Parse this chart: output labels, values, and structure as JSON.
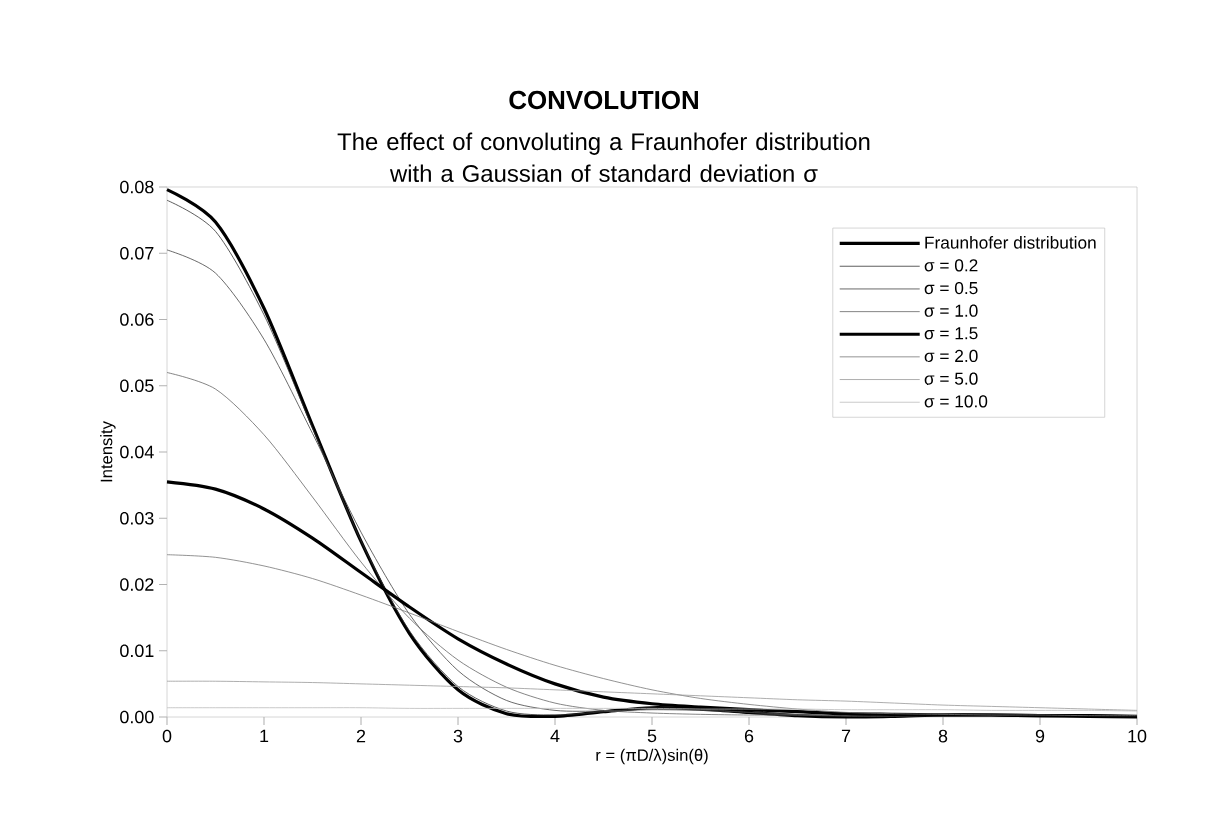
{
  "chart_data": {
    "type": "line",
    "title": "CONVOLUTION",
    "subtitle": "The effect of convoluting a Fraunhofer distribution with a Gaussian of standard deviation σ",
    "xlabel": "r = (πD/λ)sin(θ)",
    "ylabel": "Intensity",
    "x": [
      0,
      0.5,
      1,
      1.5,
      2,
      2.5,
      3,
      3.5,
      4,
      4.5,
      5,
      5.5,
      6,
      6.5,
      7,
      7.5,
      8,
      8.5,
      9,
      9.5,
      10
    ],
    "series": [
      {
        "name": "Fraunhofer distribution",
        "color": "#000000",
        "values": [
          0.0796,
          0.0747,
          0.0617,
          0.044,
          0.0265,
          0.0126,
          0.0041,
          0.0005,
          0.0001,
          0.0008,
          0.0014,
          0.0012,
          0.0007,
          0.0002,
          0.0,
          0.0001,
          0.0003,
          0.0003,
          0.0002,
          0.0001,
          0.0
        ]
      },
      {
        "name": "σ = 0.2",
        "color": "#333333",
        "values": [
          0.078,
          0.0733,
          0.0607,
          0.0436,
          0.0266,
          0.013,
          0.0046,
          0.0009,
          0.0003,
          0.0008,
          0.0013,
          0.0012,
          0.0007,
          0.0003,
          0.0001,
          0.0001,
          0.0003,
          0.0003,
          0.0002,
          0.0001,
          0.0
        ]
      },
      {
        "name": "σ = 0.5",
        "color": "#444444",
        "values": [
          0.0705,
          0.067,
          0.057,
          0.0428,
          0.0279,
          0.0155,
          0.007,
          0.0025,
          0.001,
          0.0009,
          0.0011,
          0.001,
          0.0007,
          0.0004,
          0.0002,
          0.0002,
          0.0002,
          0.0003,
          0.0002,
          0.0001,
          0.0001
        ]
      },
      {
        "name": "σ = 1.0",
        "color": "#666666",
        "values": [
          0.052,
          0.0495,
          0.0426,
          0.0332,
          0.0234,
          0.0149,
          0.0086,
          0.0045,
          0.0021,
          0.001,
          0.0006,
          0.0004,
          0.0003,
          0.0003,
          0.0002,
          0.0002,
          0.0002,
          0.0002,
          0.0002,
          0.0001,
          0.0001
        ]
      },
      {
        "name": "σ = 1.5",
        "color": "#000000",
        "values": [
          0.0355,
          0.0344,
          0.0314,
          0.027,
          0.0218,
          0.0166,
          0.0118,
          0.008,
          0.005,
          0.003,
          0.002,
          0.0015,
          0.0011,
          0.0008,
          0.0005,
          0.0004,
          0.0003,
          0.0003,
          0.0002,
          0.0002,
          0.0001
        ]
      },
      {
        "name": "σ = 2.0",
        "color": "#777777",
        "values": [
          0.0245,
          0.0241,
          0.0228,
          0.0209,
          0.0184,
          0.0157,
          0.0129,
          0.0102,
          0.0078,
          0.0058,
          0.0041,
          0.0028,
          0.0019,
          0.0012,
          0.0007,
          0.0005,
          0.0004,
          0.0003,
          0.0003,
          0.0002,
          0.0002
        ]
      },
      {
        "name": "σ = 5.0",
        "color": "#999999",
        "values": [
          0.0054,
          0.0054,
          0.0053,
          0.0052,
          0.005,
          0.0048,
          0.0046,
          0.0044,
          0.0041,
          0.0038,
          0.0035,
          0.0032,
          0.0029,
          0.0026,
          0.0024,
          0.0021,
          0.0018,
          0.0016,
          0.0014,
          0.0012,
          0.001
        ]
      },
      {
        "name": "σ = 10.0",
        "color": "#bbbbbb",
        "values": [
          0.0014,
          0.0014,
          0.0014,
          0.0014,
          0.0014,
          0.0013,
          0.0013,
          0.0013,
          0.0013,
          0.0013,
          0.0013,
          0.0012,
          0.0012,
          0.0012,
          0.0011,
          0.0011,
          0.0011,
          0.001,
          0.001,
          0.001,
          0.0009
        ]
      }
    ],
    "xlim": [
      0,
      10
    ],
    "ylim": [
      0,
      0.08
    ],
    "xticks": [
      0,
      1,
      2,
      3,
      4,
      5,
      6,
      7,
      8,
      9,
      10
    ],
    "yticks": [
      {
        "value": 0,
        "label": "0.00"
      },
      {
        "value": 0.01,
        "label": "0.01"
      },
      {
        "value": 0.02,
        "label": "0.02"
      },
      {
        "value": 0.03,
        "label": "0.03"
      },
      {
        "value": 0.04,
        "label": "0.04"
      },
      {
        "value": 0.05,
        "label": "0.05"
      },
      {
        "value": 0.06,
        "label": "0.06"
      },
      {
        "value": 0.07,
        "label": "0.07"
      },
      {
        "value": 0.08,
        "label": "0.08"
      }
    ],
    "grid": false,
    "legend": "top right",
    "marker": "none",
    "line_style": "solid"
  }
}
